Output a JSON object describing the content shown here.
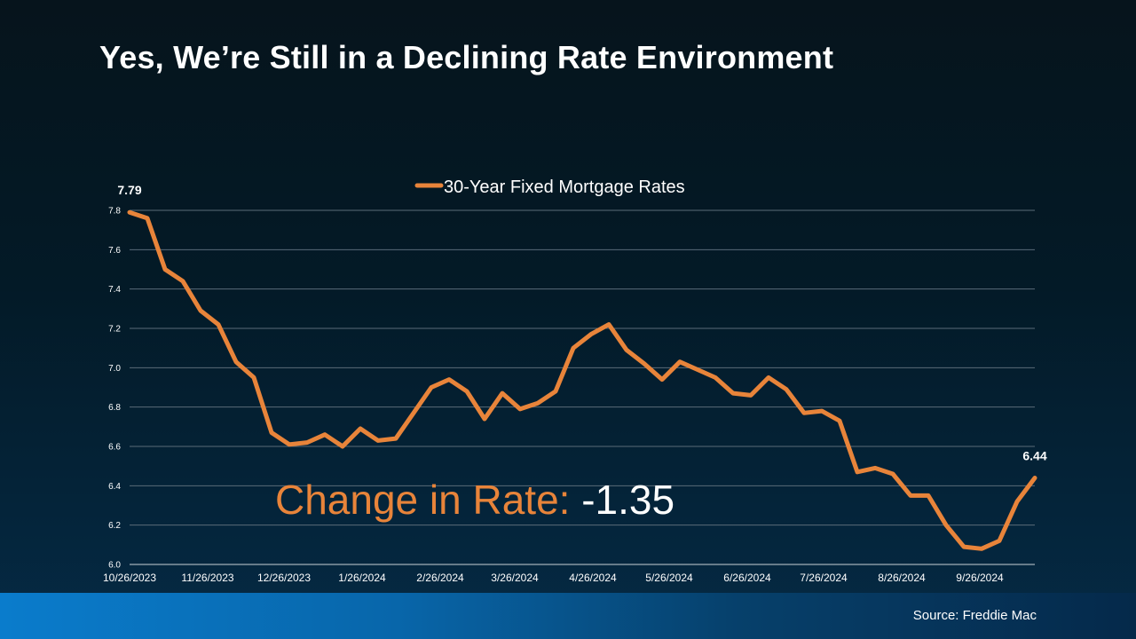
{
  "title": "Yes, We’re Still in a Declining Rate Environment",
  "change": {
    "label": "Change in Rate:",
    "value": "-1.35"
  },
  "source": "Source: Freddie Mac",
  "colors": {
    "line": "#e8843a",
    "grid": "#5a6b78",
    "text": "#ffffff"
  },
  "chart_data": {
    "type": "line",
    "title": "",
    "xlabel": "",
    "ylabel": "",
    "ylim": [
      6.0,
      7.8
    ],
    "yticks": [
      "6.0",
      "6.2",
      "6.4",
      "6.6",
      "6.8",
      "7.0",
      "7.2",
      "7.4",
      "7.6",
      "7.8"
    ],
    "grid": true,
    "legend_position": "top",
    "xtick_labels": [
      {
        "label": "10/26/2023",
        "index": 0
      },
      {
        "label": "11/26/2023",
        "index": 4.4
      },
      {
        "label": "12/26/2023",
        "index": 8.7
      },
      {
        "label": "1/26/2024",
        "index": 13.1
      },
      {
        "label": "2/26/2024",
        "index": 17.5
      },
      {
        "label": "3/26/2024",
        "index": 21.7
      },
      {
        "label": "4/26/2024",
        "index": 26.1
      },
      {
        "label": "5/26/2024",
        "index": 30.4
      },
      {
        "label": "6/26/2024",
        "index": 34.8
      },
      {
        "label": "7/26/2024",
        "index": 39.1
      },
      {
        "label": "8/26/2024",
        "index": 43.5
      },
      {
        "label": "9/26/2024",
        "index": 47.9
      }
    ],
    "series": [
      {
        "name": "30-Year Fixed Mortgage Rates",
        "values": [
          7.79,
          7.76,
          7.5,
          7.44,
          7.29,
          7.22,
          7.03,
          6.95,
          6.67,
          6.61,
          6.62,
          6.66,
          6.6,
          6.69,
          6.63,
          6.64,
          6.77,
          6.9,
          6.94,
          6.88,
          6.74,
          6.87,
          6.79,
          6.82,
          6.88,
          7.1,
          7.17,
          7.22,
          7.09,
          7.02,
          6.94,
          7.03,
          6.99,
          6.95,
          6.87,
          6.86,
          6.95,
          6.89,
          6.77,
          6.78,
          6.73,
          6.47,
          6.49,
          6.46,
          6.35,
          6.35,
          6.2,
          6.09,
          6.08,
          6.12,
          6.32,
          6.44
        ]
      }
    ],
    "data_labels": [
      {
        "index": 0,
        "text": "7.79"
      },
      {
        "index": 51,
        "text": "6.44"
      }
    ]
  }
}
